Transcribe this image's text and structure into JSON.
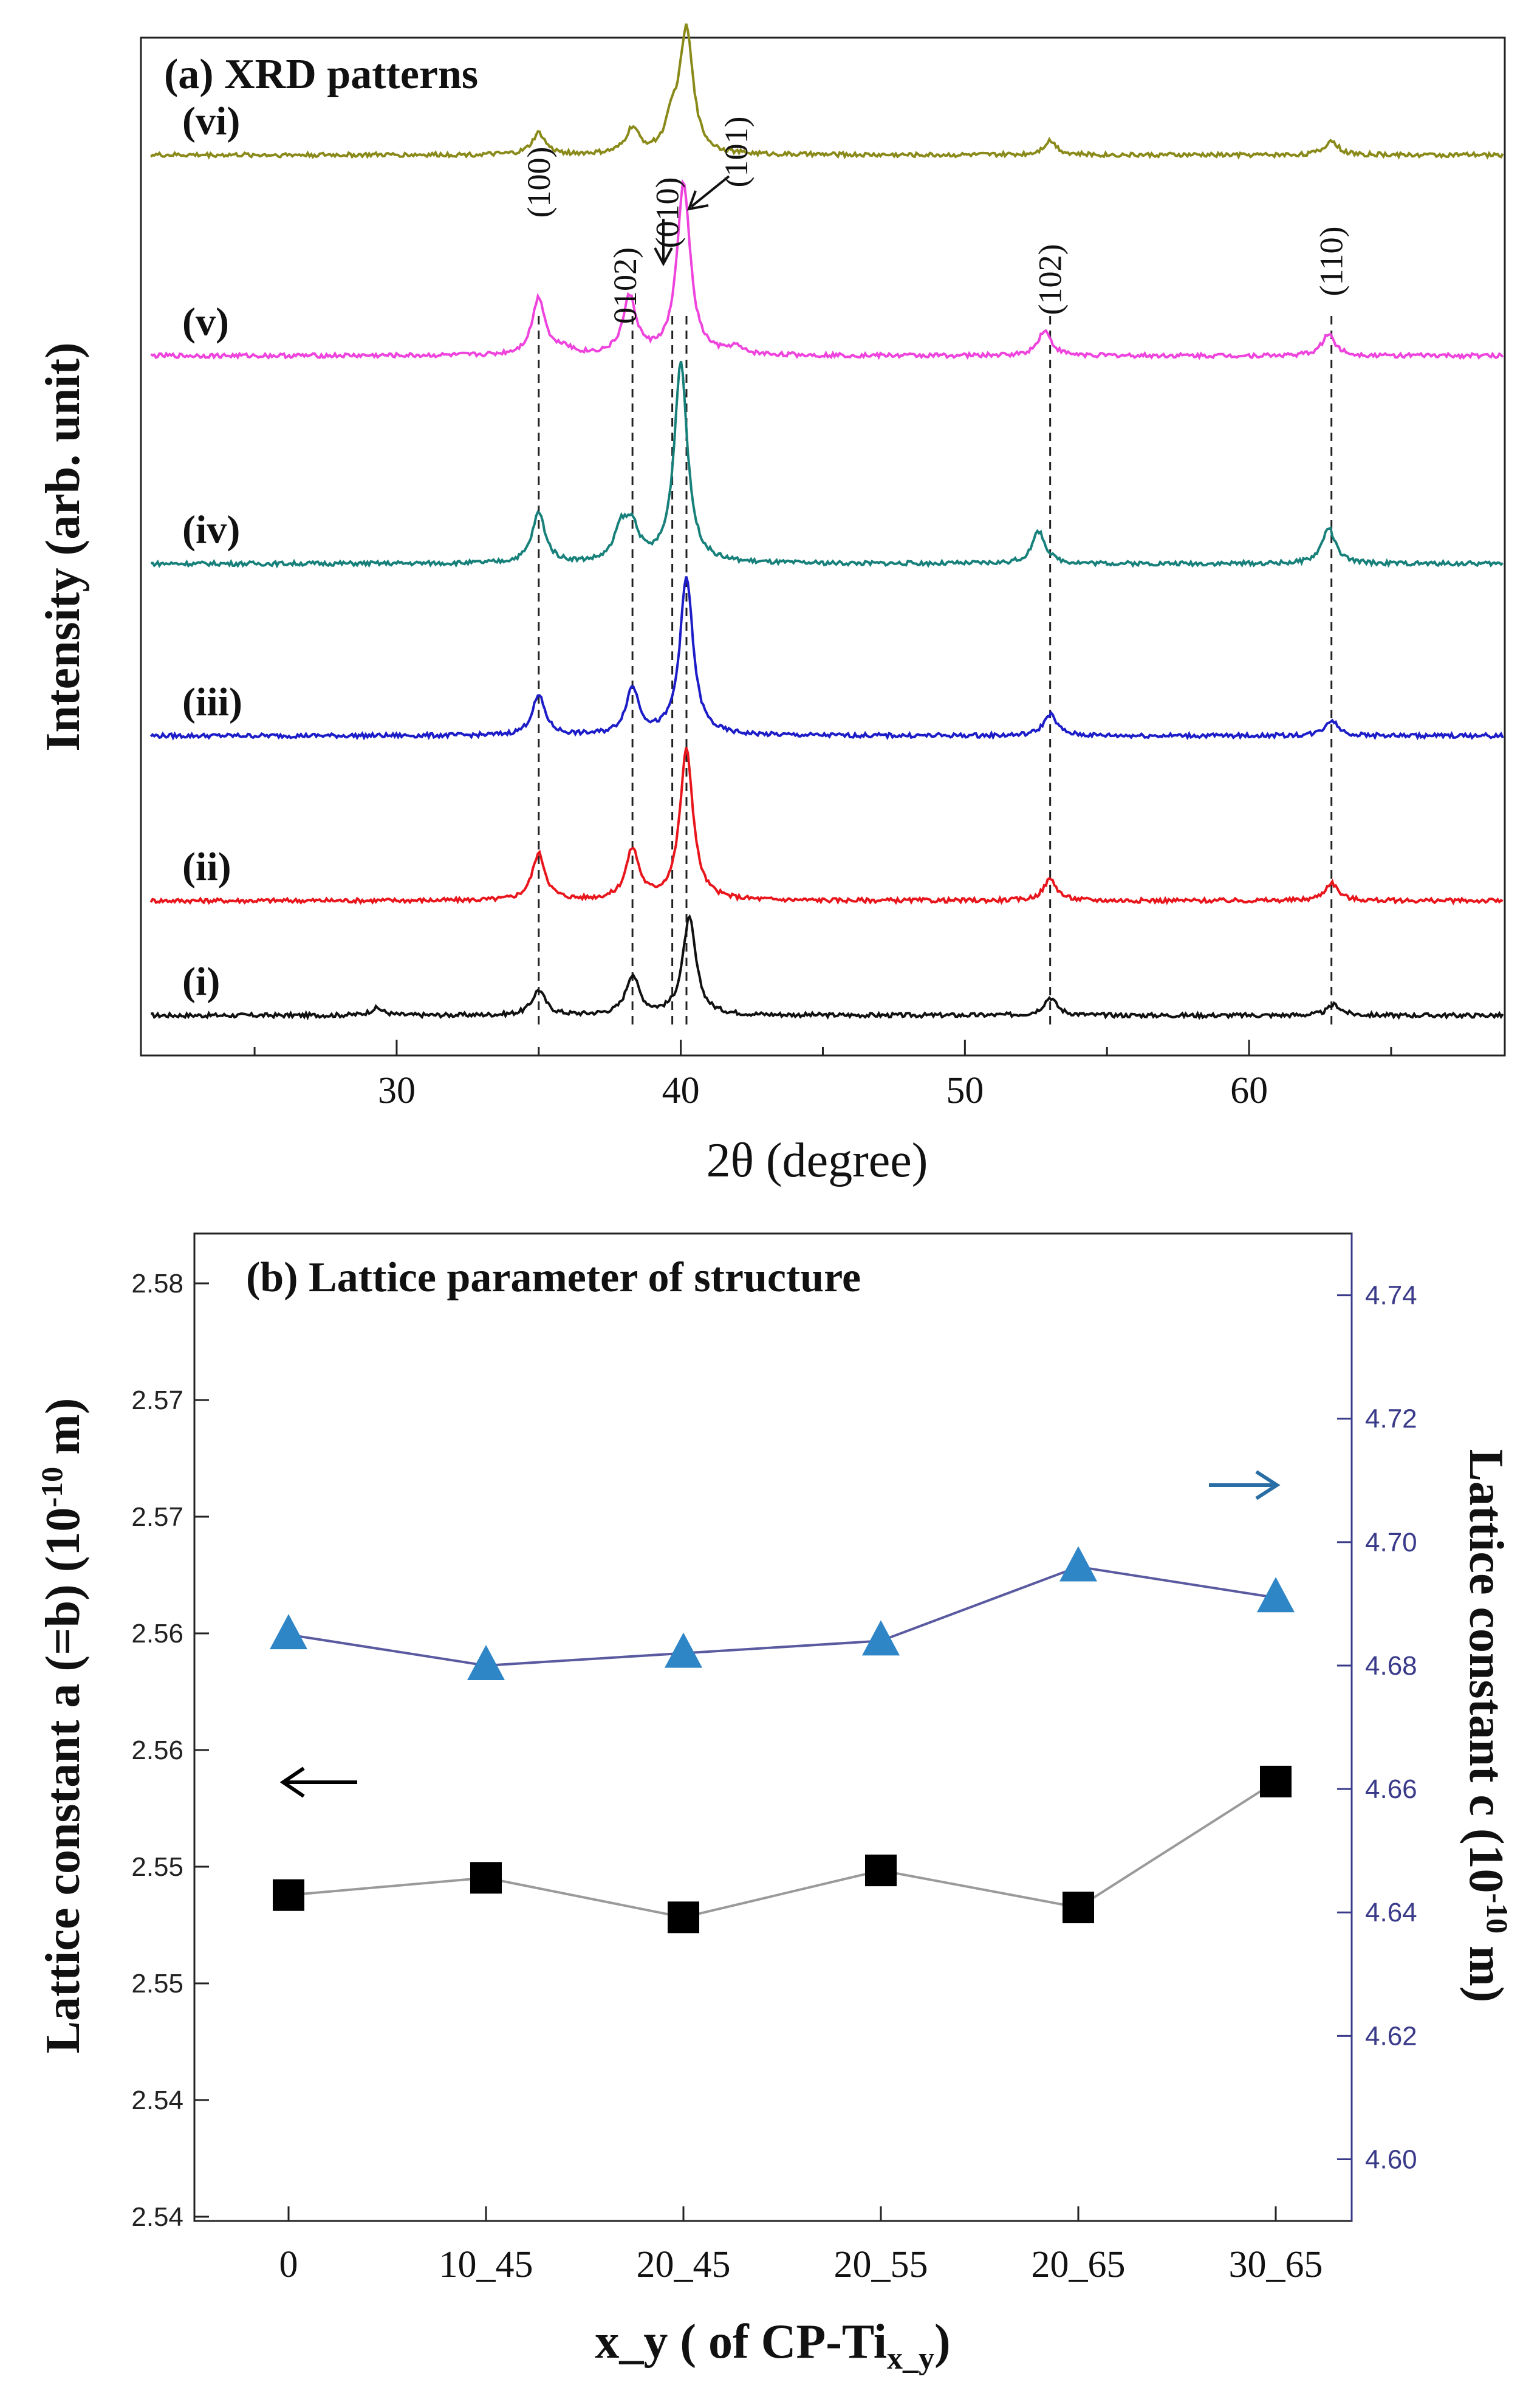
{
  "chart_data": [
    {
      "type": "line",
      "title": "(a) XRD patterns",
      "xlabel": "2θ (degree)",
      "ylabel": "Intensity (arb. unit)",
      "xlim": [
        21,
        69
      ],
      "xticks": [
        30,
        40,
        50,
        60
      ],
      "peaks": [
        {
          "label": "(100)",
          "x": 35.0
        },
        {
          "label": "0102)",
          "x": 38.3
        },
        {
          "label": "(010)",
          "x": 39.7
        },
        {
          "label": "(101)",
          "x": 40.2
        },
        {
          "label": "(102)",
          "x": 53.0
        },
        {
          "label": "(110)",
          "x": 62.9
        }
      ],
      "series": [
        {
          "name": "(i)",
          "color": "#111111",
          "baseline": 0.0,
          "peaks": [
            [
              29.3,
              0.1
            ],
            [
              35.0,
              0.35
            ],
            [
              38.3,
              0.55
            ],
            [
              40.3,
              1.35
            ],
            [
              53.0,
              0.25
            ],
            [
              63.0,
              0.15
            ]
          ]
        },
        {
          "name": "(ii)",
          "color": "#e8161c",
          "baseline": 1.6,
          "peaks": [
            [
              35.0,
              0.65
            ],
            [
              38.3,
              0.7
            ],
            [
              40.2,
              2.1
            ],
            [
              53.0,
              0.3
            ],
            [
              62.9,
              0.25
            ]
          ]
        },
        {
          "name": "(iii)",
          "color": "#1c1cc8",
          "baseline": 3.9,
          "peaks": [
            [
              35.0,
              0.55
            ],
            [
              38.3,
              0.65
            ],
            [
              40.2,
              2.2
            ],
            [
              53.0,
              0.3
            ],
            [
              62.9,
              0.22
            ]
          ]
        },
        {
          "name": "(iv)",
          "color": "#17807a",
          "baseline": 6.3,
          "peaks": [
            [
              35.0,
              0.7
            ],
            [
              37.9,
              0.45
            ],
            [
              38.3,
              0.45
            ],
            [
              40.0,
              2.8
            ],
            [
              52.6,
              0.45
            ],
            [
              62.8,
              0.5
            ]
          ]
        },
        {
          "name": "(v)",
          "color": "#ee44dd",
          "baseline": 9.2,
          "peaks": [
            [
              35.0,
              0.8
            ],
            [
              35.9,
              0.1
            ],
            [
              38.2,
              0.8
            ],
            [
              40.1,
              2.4
            ],
            [
              41.9,
              0.1
            ],
            [
              52.8,
              0.35
            ],
            [
              62.8,
              0.3
            ]
          ]
        },
        {
          "name": "(vi)",
          "color": "#8a8a1a",
          "baseline": 12.0,
          "peaks": [
            [
              35.0,
              0.3
            ],
            [
              38.3,
              0.35
            ],
            [
              39.7,
              0.4
            ],
            [
              40.2,
              1.7
            ],
            [
              53.0,
              0.2
            ],
            [
              62.9,
              0.2
            ]
          ]
        }
      ]
    },
    {
      "type": "scatter",
      "title": "(b) Lattice parameter of structure",
      "xlabel": "x_y ( of CP-Ti",
      "xlabel_sub": "x_y",
      "xlabel_end": ")",
      "ylabel_left": "Lattice constant a (=b) (10",
      "ylabel_left_sup": "-10",
      "ylabel_left_end": " m)",
      "ylabel_right": "Lattice constant c (10",
      "ylabel_right_sup": "-10",
      "ylabel_right_end": " m)",
      "categories": [
        "0",
        "10_45",
        "20_45",
        "20_55",
        "20_65",
        "30_65"
      ],
      "left_ticks": [
        "2.54",
        "2.54",
        "2.55",
        "2.55",
        "2.56",
        "2.56",
        "2.57",
        "2.57",
        "2.58"
      ],
      "right_ticks": [
        "4.60",
        "4.62",
        "4.64",
        "4.66",
        "4.68",
        "4.70",
        "4.72",
        "4.74"
      ],
      "ylim_left": [
        2.5385,
        2.5785
      ],
      "ylim_right": [
        4.59,
        4.75
      ],
      "series": [
        {
          "name": "a",
          "marker": "square",
          "axis": "left",
          "color": "#000000",
          "values": [
            2.5517,
            2.5524,
            2.5508,
            2.5527,
            2.5512,
            2.5563
          ]
        },
        {
          "name": "c",
          "marker": "triangle",
          "axis": "right",
          "color": "#2f86c7",
          "values": [
            4.685,
            4.68,
            4.682,
            4.684,
            4.696,
            4.691
          ]
        }
      ]
    }
  ]
}
